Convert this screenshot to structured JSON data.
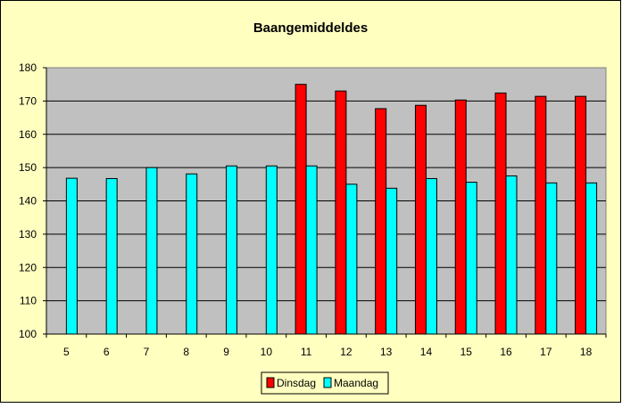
{
  "chart_data": {
    "type": "bar",
    "title": "Baangemiddeldes",
    "xlabel": "",
    "ylabel": "",
    "categories": [
      "5",
      "6",
      "7",
      "8",
      "9",
      "10",
      "11",
      "12",
      "13",
      "14",
      "15",
      "16",
      "17",
      "18"
    ],
    "series": [
      {
        "name": "Dinsdag",
        "color": "#ff0000",
        "values": [
          null,
          null,
          null,
          null,
          null,
          null,
          175,
          173,
          167.7,
          168.7,
          170.3,
          172.4,
          171.4,
          171.4
        ]
      },
      {
        "name": "Maandag",
        "color": "#00ffff",
        "values": [
          146.8,
          146.7,
          150,
          148.1,
          150.5,
          150.5,
          150.5,
          145,
          143.8,
          146.7,
          145.6,
          147.5,
          145.4,
          145.4
        ]
      }
    ],
    "ylim": [
      100,
      180
    ],
    "yticks": [
      "100",
      "110",
      "120",
      "130",
      "140",
      "150",
      "160",
      "170",
      "180"
    ],
    "grid": true,
    "legend_position": "bottom",
    "colors": {
      "background": "#ffffc0",
      "plot_area": "#c0c0c0",
      "gridline": "#000000"
    }
  }
}
